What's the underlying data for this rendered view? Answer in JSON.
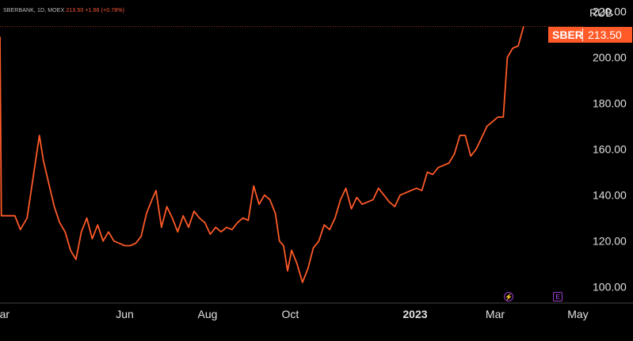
{
  "header": {
    "symbol_line": "SBERBANK, 1D, MOEX",
    "price_line": "213.50 +1.66 (+0.78%)"
  },
  "currency_label": "RUB",
  "price_tag": {
    "symbol": "SBER",
    "price": "213.50"
  },
  "markers": {
    "dividend_icon": "lightning-icon",
    "dividend_glyph": "⚡",
    "earnings_icon": "earnings-icon",
    "earnings_glyph": "E"
  },
  "colors": {
    "background": "#000000",
    "line": "#ff5a28",
    "text": "#e0e0e0",
    "marker": "#c050ff"
  },
  "chart_data": {
    "type": "line",
    "title": "SBERBANK, 1D, MOEX",
    "xlabel": "",
    "ylabel": "",
    "ylim": [
      93,
      225
    ],
    "xlim": [
      "2022-03-01",
      "2023-05-06"
    ],
    "y_ticks": [
      100,
      120,
      140,
      160,
      180,
      200,
      220
    ],
    "y_tick_labels": [
      "100.00",
      "120.00",
      "140.00",
      "160.00",
      "180.00",
      "200.00",
      "220.00"
    ],
    "x_ticks": [
      {
        "label": "Mar",
        "date": "2022-03-01",
        "bold": false
      },
      {
        "label": "Jun",
        "date": "2022-06-01",
        "bold": false
      },
      {
        "label": "Aug",
        "date": "2022-08-01",
        "bold": false
      },
      {
        "label": "Oct",
        "date": "2022-10-01",
        "bold": false
      },
      {
        "label": "2023",
        "date": "2023-01-01",
        "bold": true
      },
      {
        "label": "Mar",
        "date": "2023-03-01",
        "bold": false
      },
      {
        "label": "May",
        "date": "2023-05-01",
        "bold": false
      }
    ],
    "series": [
      {
        "values": [
          [
            "2022-03-01",
            209
          ],
          [
            "2022-03-02",
            131
          ],
          [
            "2022-03-12",
            131
          ],
          [
            "2022-03-16",
            125
          ],
          [
            "2022-03-21",
            130
          ],
          [
            "2022-03-26",
            150
          ],
          [
            "2022-03-30",
            166
          ],
          [
            "2022-04-02",
            155
          ],
          [
            "2022-04-06",
            145
          ],
          [
            "2022-04-10",
            135
          ],
          [
            "2022-04-14",
            128
          ],
          [
            "2022-04-18",
            124
          ],
          [
            "2022-04-22",
            116
          ],
          [
            "2022-04-26",
            112
          ],
          [
            "2022-04-30",
            124
          ],
          [
            "2022-05-04",
            130
          ],
          [
            "2022-05-08",
            121
          ],
          [
            "2022-05-12",
            127
          ],
          [
            "2022-05-16",
            120
          ],
          [
            "2022-05-20",
            124
          ],
          [
            "2022-05-24",
            120
          ],
          [
            "2022-05-28",
            119
          ],
          [
            "2022-06-01",
            118
          ],
          [
            "2022-06-05",
            118
          ],
          [
            "2022-06-09",
            119
          ],
          [
            "2022-06-13",
            122
          ],
          [
            "2022-06-17",
            132
          ],
          [
            "2022-06-21",
            138
          ],
          [
            "2022-06-24",
            142
          ],
          [
            "2022-06-28",
            126
          ],
          [
            "2022-07-02",
            135
          ],
          [
            "2022-07-06",
            130
          ],
          [
            "2022-07-10",
            124
          ],
          [
            "2022-07-14",
            131
          ],
          [
            "2022-07-18",
            126
          ],
          [
            "2022-07-22",
            133
          ],
          [
            "2022-07-26",
            130
          ],
          [
            "2022-07-30",
            128
          ],
          [
            "2022-08-03",
            123
          ],
          [
            "2022-08-07",
            126
          ],
          [
            "2022-08-11",
            124
          ],
          [
            "2022-08-15",
            126
          ],
          [
            "2022-08-19",
            125
          ],
          [
            "2022-08-23",
            128
          ],
          [
            "2022-08-27",
            130
          ],
          [
            "2022-08-31",
            129
          ],
          [
            "2022-09-04",
            144
          ],
          [
            "2022-09-08",
            136
          ],
          [
            "2022-09-12",
            140
          ],
          [
            "2022-09-16",
            138
          ],
          [
            "2022-09-20",
            132
          ],
          [
            "2022-09-23",
            120
          ],
          [
            "2022-09-26",
            118
          ],
          [
            "2022-09-29",
            107
          ],
          [
            "2022-10-02",
            116
          ],
          [
            "2022-10-06",
            110
          ],
          [
            "2022-10-10",
            102
          ],
          [
            "2022-10-14",
            108
          ],
          [
            "2022-10-18",
            117
          ],
          [
            "2022-10-22",
            120
          ],
          [
            "2022-10-26",
            127
          ],
          [
            "2022-10-30",
            125
          ],
          [
            "2022-11-03",
            130
          ],
          [
            "2022-11-07",
            138
          ],
          [
            "2022-11-11",
            143
          ],
          [
            "2022-11-15",
            134
          ],
          [
            "2022-11-19",
            139
          ],
          [
            "2022-11-23",
            136
          ],
          [
            "2022-11-27",
            137
          ],
          [
            "2022-12-01",
            138
          ],
          [
            "2022-12-05",
            143
          ],
          [
            "2022-12-09",
            140
          ],
          [
            "2022-12-13",
            137
          ],
          [
            "2022-12-17",
            135
          ],
          [
            "2022-12-21",
            140
          ],
          [
            "2022-12-25",
            141
          ],
          [
            "2022-12-29",
            142
          ],
          [
            "2023-01-02",
            143
          ],
          [
            "2023-01-06",
            142
          ],
          [
            "2023-01-10",
            150
          ],
          [
            "2023-01-14",
            149
          ],
          [
            "2023-01-18",
            152
          ],
          [
            "2023-01-22",
            153
          ],
          [
            "2023-01-26",
            154
          ],
          [
            "2023-01-30",
            158
          ],
          [
            "2023-02-03",
            166
          ],
          [
            "2023-02-07",
            166
          ],
          [
            "2023-02-11",
            157
          ],
          [
            "2023-02-15",
            160
          ],
          [
            "2023-02-19",
            165
          ],
          [
            "2023-02-23",
            170
          ],
          [
            "2023-02-27",
            172
          ],
          [
            "2023-03-03",
            174
          ],
          [
            "2023-03-07",
            174
          ],
          [
            "2023-03-10",
            200
          ],
          [
            "2023-03-14",
            204
          ],
          [
            "2023-03-18",
            205
          ],
          [
            "2023-03-22",
            213.5
          ]
        ]
      }
    ]
  }
}
